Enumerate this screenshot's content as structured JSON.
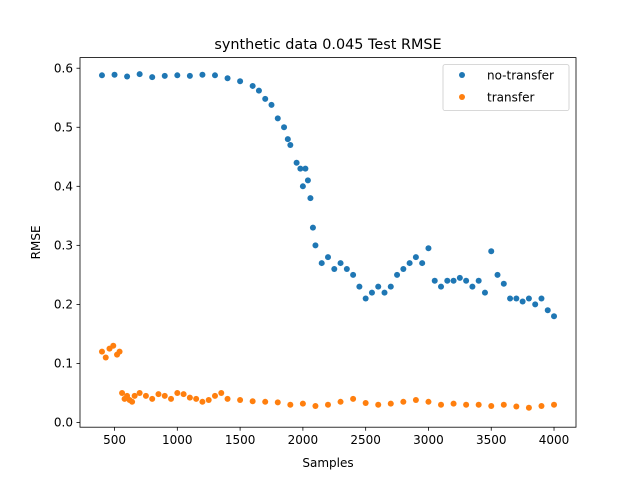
{
  "chart_data": {
    "type": "scatter",
    "title": "synthetic data 0.045 Test RMSE",
    "xlabel": "Samples",
    "ylabel": "RMSE",
    "xlim": [
      225,
      4175
    ],
    "ylim": [
      -0.008,
      0.618
    ],
    "xticks": [
      500,
      1000,
      1500,
      2000,
      2500,
      3000,
      3500,
      4000
    ],
    "xtick_labels": [
      "500",
      "1000",
      "1500",
      "2000",
      "2500",
      "3000",
      "3500",
      "4000"
    ],
    "yticks": [
      0.0,
      0.1,
      0.2,
      0.3,
      0.4,
      0.5,
      0.6
    ],
    "ytick_labels": [
      "0.0",
      "0.1",
      "0.2",
      "0.3",
      "0.4",
      "0.5",
      "0.6"
    ],
    "grid": false,
    "legend_position": "upper right",
    "series": [
      {
        "name": "no-transfer",
        "color": "#1f77b4",
        "x": [
          400,
          500,
          600,
          700,
          800,
          900,
          1000,
          1100,
          1200,
          1300,
          1400,
          1500,
          1600,
          1650,
          1700,
          1750,
          1800,
          1850,
          1880,
          1900,
          1950,
          1980,
          2000,
          2020,
          2040,
          2060,
          2080,
          2100,
          2150,
          2200,
          2250,
          2300,
          2350,
          2400,
          2450,
          2500,
          2550,
          2600,
          2650,
          2700,
          2750,
          2800,
          2850,
          2900,
          2950,
          3000,
          3050,
          3100,
          3150,
          3200,
          3250,
          3300,
          3350,
          3400,
          3450,
          3500,
          3550,
          3600,
          3650,
          3700,
          3750,
          3800,
          3850,
          3900,
          3950,
          4000
        ],
        "values": [
          0.588,
          0.589,
          0.586,
          0.59,
          0.585,
          0.587,
          0.588,
          0.587,
          0.589,
          0.588,
          0.583,
          0.578,
          0.57,
          0.562,
          0.548,
          0.538,
          0.515,
          0.5,
          0.48,
          0.47,
          0.44,
          0.43,
          0.4,
          0.43,
          0.41,
          0.38,
          0.33,
          0.3,
          0.27,
          0.28,
          0.26,
          0.27,
          0.26,
          0.25,
          0.23,
          0.21,
          0.22,
          0.23,
          0.22,
          0.23,
          0.25,
          0.26,
          0.27,
          0.28,
          0.27,
          0.295,
          0.24,
          0.23,
          0.24,
          0.24,
          0.245,
          0.24,
          0.23,
          0.24,
          0.22,
          0.29,
          0.25,
          0.235,
          0.21,
          0.21,
          0.205,
          0.21,
          0.2,
          0.21,
          0.19,
          0.18
        ]
      },
      {
        "name": "transfer",
        "color": "#ff7f0e",
        "x": [
          400,
          430,
          460,
          490,
          520,
          540,
          560,
          580,
          600,
          620,
          640,
          660,
          700,
          750,
          800,
          850,
          900,
          950,
          1000,
          1050,
          1100,
          1150,
          1200,
          1250,
          1300,
          1350,
          1400,
          1500,
          1600,
          1700,
          1800,
          1900,
          2000,
          2100,
          2200,
          2300,
          2400,
          2500,
          2600,
          2700,
          2800,
          2900,
          3000,
          3100,
          3200,
          3300,
          3400,
          3500,
          3600,
          3700,
          3800,
          3900,
          4000
        ],
        "values": [
          0.12,
          0.11,
          0.125,
          0.13,
          0.115,
          0.12,
          0.05,
          0.04,
          0.045,
          0.038,
          0.035,
          0.045,
          0.05,
          0.045,
          0.04,
          0.048,
          0.045,
          0.04,
          0.05,
          0.048,
          0.042,
          0.04,
          0.035,
          0.038,
          0.045,
          0.05,
          0.04,
          0.038,
          0.036,
          0.035,
          0.034,
          0.03,
          0.032,
          0.028,
          0.03,
          0.035,
          0.04,
          0.033,
          0.03,
          0.032,
          0.035,
          0.038,
          0.035,
          0.03,
          0.032,
          0.03,
          0.03,
          0.028,
          0.03,
          0.027,
          0.025,
          0.028,
          0.03
        ]
      }
    ]
  }
}
